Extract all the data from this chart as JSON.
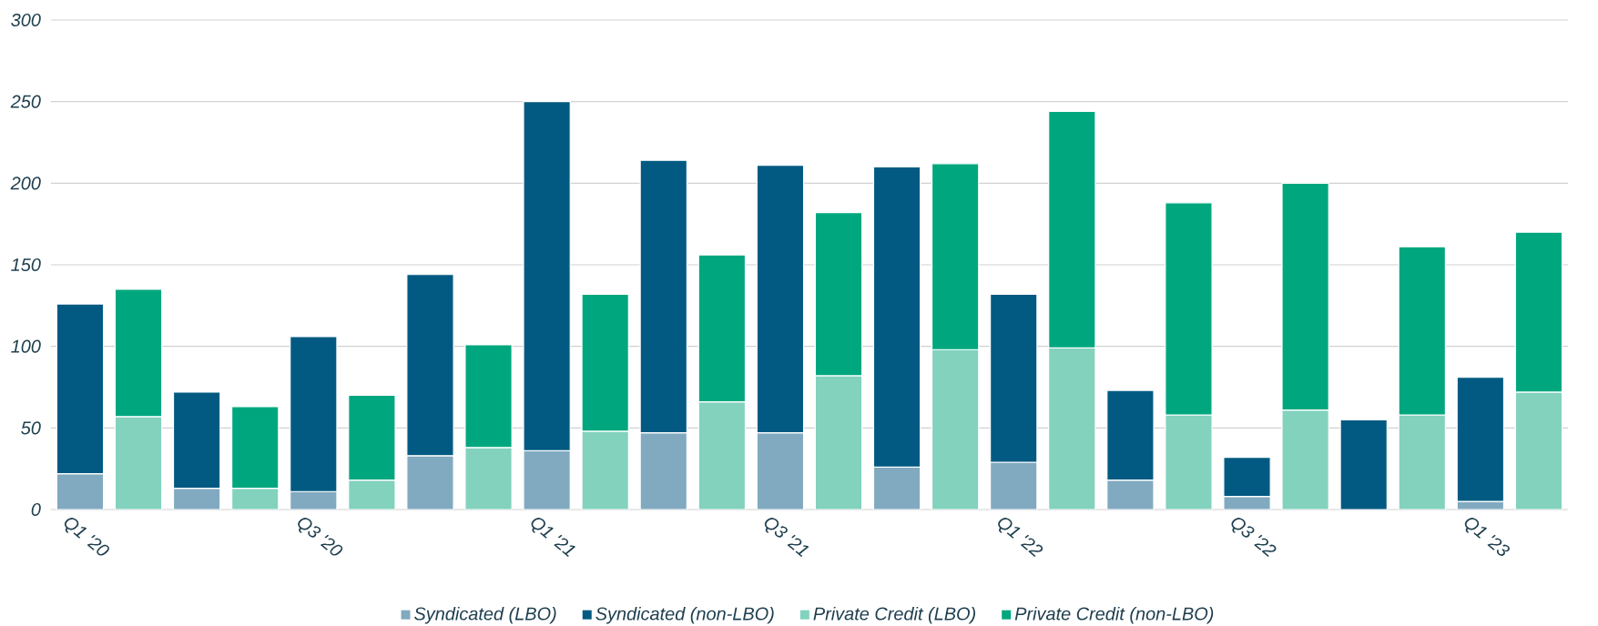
{
  "chart_data": {
    "type": "bar",
    "stacked": true,
    "categories": [
      "Q1 '20",
      null,
      null,
      null,
      "Q3 '20",
      null,
      null,
      null,
      "Q1 '21",
      null,
      null,
      null,
      "Q3 '21",
      null,
      null,
      null,
      "Q1 '22",
      null,
      null,
      null,
      "Q3 '22",
      null,
      null,
      null,
      "Q1 '23",
      null
    ],
    "series": [
      {
        "name": "Syndicated (LBO)",
        "color": "#81aac0",
        "values": [
          22,
          null,
          13,
          null,
          11,
          null,
          33,
          null,
          36,
          null,
          47,
          null,
          47,
          null,
          26,
          null,
          29,
          null,
          18,
          null,
          8,
          null,
          null,
          null,
          5,
          null
        ]
      },
      {
        "name": "Syndicated (non-LBO)",
        "color": "#025a82",
        "values": [
          104,
          null,
          59,
          null,
          95,
          null,
          111,
          null,
          214,
          null,
          167,
          null,
          164,
          null,
          184,
          null,
          103,
          null,
          55,
          null,
          24,
          null,
          55,
          null,
          76,
          null
        ]
      },
      {
        "name": "Private Credit (LBO)",
        "color": "#82d2be",
        "values": [
          null,
          57,
          null,
          13,
          null,
          18,
          null,
          38,
          null,
          48,
          null,
          66,
          null,
          82,
          null,
          98,
          null,
          99,
          null,
          58,
          null,
          61,
          null,
          58,
          null,
          72
        ]
      },
      {
        "name": "Private Credit (non-LBO)",
        "color": "#00a77e",
        "values": [
          null,
          78,
          null,
          50,
          null,
          52,
          null,
          63,
          null,
          84,
          null,
          90,
          null,
          100,
          null,
          114,
          null,
          145,
          null,
          130,
          null,
          139,
          null,
          103,
          null,
          98
        ]
      }
    ],
    "ylim": [
      0,
      300
    ],
    "yticks": [
      0,
      50,
      100,
      150,
      200,
      250,
      300
    ],
    "grid": "y",
    "legend": "bottom"
  }
}
